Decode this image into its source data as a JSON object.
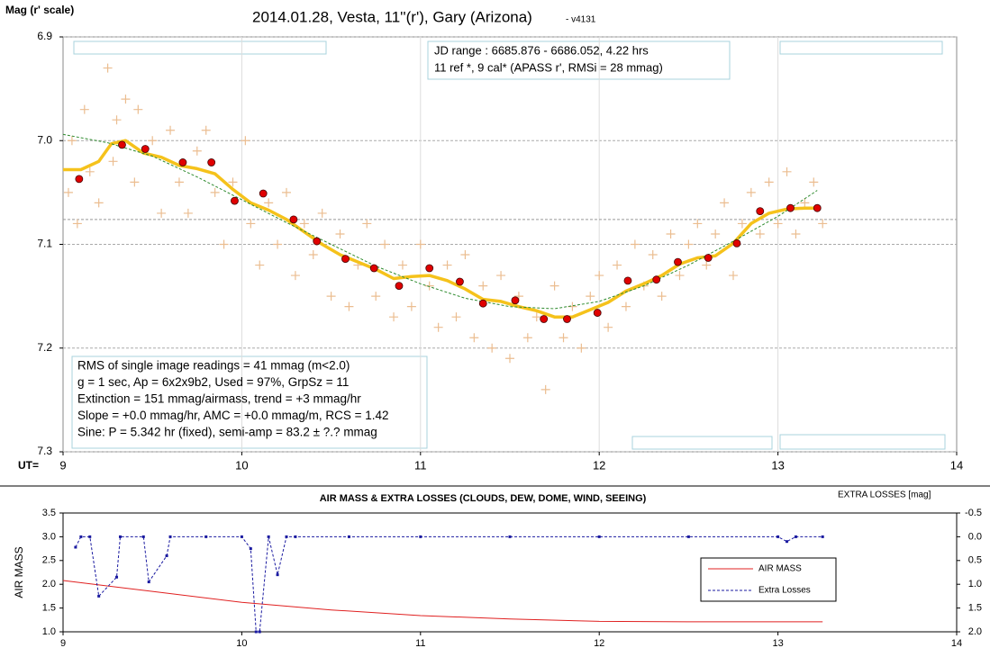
{
  "chart_data": [
    {
      "type": "scatter",
      "title": "2014.01.28, Vesta, 11''(r'), Gary (Arizona)",
      "subtitle": "- v4131",
      "ylabel": "Mag (r' scale)",
      "xlabel": "UT=",
      "xlim": [
        9,
        14
      ],
      "xticks": [
        9,
        10,
        11,
        12,
        13,
        14
      ],
      "ylim": [
        6.9,
        7.3
      ],
      "y_inverted": true,
      "yticks": [
        6.9,
        {
          "value": 7,
          "label": "7.0"
        },
        7.1,
        7.2,
        7.3
      ],
      "grid": true,
      "ref_line": 7.076,
      "annotations": {
        "info_top": [
          "JD range : 6685.876 - 6686.052, 4.22 hrs",
          "11  ref *, 9 cal* (APASS r', RMSi = 28 mmag)"
        ],
        "info_bottom": [
          "RMS of single image readings = 41 mmag (m<2.0)",
          "g = 1 sec, Ap = 6x2x9b2, Used = 97%, GrpSz = 11",
          "Extinction = 151 mmag/airmass, trend = +3 mmag/hr",
          "Slope = +0.0 mmag/hr, AMC = +0.0 mmag/m, RCS = 1.42",
          "Sine: P = 5.342 hr (fixed), semi-amp = 83.2 ± ?.? mmag"
        ]
      },
      "series": [
        {
          "type": "scatter",
          "marker": "plus",
          "color": "#ebbd90",
          "x": [
            9.03,
            9.05,
            9.08,
            9.12,
            9.15,
            9.2,
            9.25,
            9.28,
            9.3,
            9.35,
            9.4,
            9.42,
            9.5,
            9.55,
            9.6,
            9.65,
            9.7,
            9.75,
            9.8,
            9.85,
            9.9,
            9.95,
            10.02,
            10.05,
            10.1,
            10.15,
            10.2,
            10.25,
            10.3,
            10.35,
            10.4,
            10.45,
            10.5,
            10.55,
            10.6,
            10.65,
            10.7,
            10.75,
            10.8,
            10.85,
            10.9,
            10.95,
            11.0,
            11.05,
            11.1,
            11.15,
            11.2,
            11.25,
            11.3,
            11.35,
            11.4,
            11.45,
            11.5,
            11.55,
            11.6,
            11.65,
            11.7,
            11.75,
            11.8,
            11.85,
            11.9,
            11.95,
            12.0,
            12.05,
            12.1,
            12.15,
            12.2,
            12.25,
            12.3,
            12.35,
            12.4,
            12.45,
            12.5,
            12.55,
            12.6,
            12.65,
            12.7,
            12.75,
            12.8,
            12.85,
            12.9,
            12.95,
            13.0,
            13.05,
            13.1,
            13.15,
            13.2,
            13.25
          ],
          "values": [
            7.05,
            7.0,
            7.08,
            6.97,
            7.03,
            7.06,
            6.93,
            7.02,
            6.98,
            6.96,
            7.04,
            6.97,
            7.0,
            7.07,
            6.99,
            7.04,
            7.07,
            7.01,
            6.99,
            7.05,
            7.1,
            7.04,
            7.0,
            7.08,
            7.12,
            7.06,
            7.1,
            7.05,
            7.13,
            7.08,
            7.11,
            7.07,
            7.15,
            7.09,
            7.16,
            7.12,
            7.08,
            7.15,
            7.1,
            7.17,
            7.12,
            7.16,
            7.1,
            7.14,
            7.18,
            7.12,
            7.17,
            7.11,
            7.19,
            7.14,
            7.2,
            7.13,
            7.21,
            7.15,
            7.19,
            7.17,
            7.24,
            7.14,
            7.19,
            7.16,
            7.2,
            7.15,
            7.13,
            7.18,
            7.12,
            7.16,
            7.1,
            7.14,
            7.11,
            7.15,
            7.09,
            7.13,
            7.1,
            7.08,
            7.12,
            7.09,
            7.06,
            7.13,
            7.08,
            7.05,
            7.09,
            7.04,
            7.08,
            7.03,
            7.09,
            7.06,
            7.04,
            7.08
          ]
        },
        {
          "type": "line",
          "color": "#f5c21b",
          "width": 3.5,
          "x": [
            9.0,
            9.1,
            9.2,
            9.27,
            9.35,
            9.45,
            9.55,
            9.65,
            9.75,
            9.85,
            9.95,
            10.05,
            10.15,
            10.25,
            10.35,
            10.45,
            10.55,
            10.65,
            10.75,
            10.85,
            10.95,
            11.05,
            11.15,
            11.25,
            11.35,
            11.45,
            11.55,
            11.65,
            11.75,
            11.85,
            11.95,
            12.05,
            12.15,
            12.25,
            12.35,
            12.45,
            12.55,
            12.65,
            12.75,
            12.85,
            12.95,
            13.05,
            13.15,
            13.22
          ],
          "values": [
            7.028,
            7.028,
            7.02,
            7.003,
            7.0,
            7.012,
            7.016,
            7.024,
            7.027,
            7.032,
            7.047,
            7.06,
            7.067,
            7.076,
            7.088,
            7.1,
            7.11,
            7.117,
            7.124,
            7.133,
            7.131,
            7.13,
            7.135,
            7.143,
            7.153,
            7.155,
            7.16,
            7.164,
            7.17,
            7.17,
            7.163,
            7.156,
            7.145,
            7.138,
            7.13,
            7.119,
            7.113,
            7.111,
            7.099,
            7.08,
            7.07,
            7.066,
            7.065,
            7.065
          ]
        },
        {
          "type": "line",
          "color": "#2e8b2e",
          "dashed": true,
          "width": 1,
          "x": [
            9.0,
            9.25,
            9.5,
            9.75,
            10.0,
            10.25,
            10.5,
            10.75,
            11.0,
            11.25,
            11.5,
            11.75,
            12.0,
            12.25,
            12.5,
            12.75,
            13.0,
            13.22
          ],
          "values": [
            6.994,
            7.002,
            7.015,
            7.035,
            7.057,
            7.079,
            7.1,
            7.121,
            7.138,
            7.152,
            7.16,
            7.162,
            7.155,
            7.14,
            7.12,
            7.097,
            7.073,
            7.048
          ]
        },
        {
          "type": "scatter",
          "marker": "circle",
          "color": "#e00000",
          "x": [
            9.09,
            9.33,
            9.46,
            9.67,
            9.83,
            9.96,
            10.12,
            10.29,
            10.42,
            10.58,
            10.74,
            10.88,
            11.05,
            11.22,
            11.35,
            11.53,
            11.69,
            11.82,
            11.99,
            12.16,
            12.32,
            12.44,
            12.61,
            12.77,
            12.9,
            13.07,
            13.22
          ],
          "values": [
            7.037,
            7.004,
            7.008,
            7.021,
            7.021,
            7.058,
            7.051,
            7.076,
            7.097,
            7.114,
            7.123,
            7.14,
            7.123,
            7.136,
            7.157,
            7.154,
            7.172,
            7.172,
            7.166,
            7.135,
            7.134,
            7.117,
            7.113,
            7.099,
            7.068,
            7.065,
            7.065
          ]
        }
      ]
    },
    {
      "type": "line",
      "title": "AIR MASS & EXTRA LOSSES (CLOUDS, DEW, DOME, WIND, SEEING)",
      "ylabel": "AIR MASS",
      "y2label": "EXTRA LOSSES [mag]",
      "xlim": [
        9,
        14
      ],
      "xticks": [
        9,
        10,
        11,
        12,
        13,
        14
      ],
      "ylim": [
        1,
        3.5
      ],
      "yticks": [
        {
          "value": 1,
          "label": "1.0"
        },
        1.5,
        {
          "value": 2,
          "label": "2.0"
        },
        2.5,
        {
          "value": 3,
          "label": "3.0"
        },
        3.5
      ],
      "y2lim": [
        -0.5,
        2
      ],
      "y2_inverted": true,
      "y2ticks": [
        -0.5,
        {
          "value": 0,
          "label": "0.0"
        },
        0.5,
        {
          "value": 1,
          "label": "1.0"
        },
        1.5,
        {
          "value": 2,
          "label": "2.0"
        }
      ],
      "grid": false,
      "legend": "right",
      "series": [
        {
          "name": "AIR MASS",
          "type": "line",
          "color": "#e02020",
          "width": 1,
          "x": [
            9.0,
            9.5,
            10.0,
            10.5,
            11.0,
            11.5,
            12.0,
            12.5,
            13.0,
            13.25
          ],
          "values": [
            2.08,
            1.85,
            1.62,
            1.46,
            1.34,
            1.27,
            1.22,
            1.21,
            1.21,
            1.21
          ]
        },
        {
          "name": "Extra Losses",
          "type": "line",
          "axis": "y2",
          "color": "#1a1aa0",
          "dashed": true,
          "marker": "square",
          "width": 1,
          "x": [
            9.07,
            9.1,
            9.15,
            9.2,
            9.3,
            9.32,
            9.45,
            9.48,
            9.58,
            9.6,
            9.8,
            10.0,
            10.05,
            10.08,
            10.1,
            10.15,
            10.2,
            10.25,
            10.3,
            10.6,
            11.0,
            11.5,
            12.0,
            12.5,
            13.0,
            13.05,
            13.1,
            13.25
          ],
          "values": [
            0.22,
            0.0,
            0.0,
            1.25,
            0.85,
            0.0,
            0.0,
            0.95,
            0.4,
            0.0,
            0.0,
            0.0,
            0.25,
            2.0,
            2.0,
            0.0,
            0.8,
            0.0,
            0.0,
            0.0,
            0.0,
            0.0,
            0.0,
            0.0,
            0.0,
            0.1,
            0.0,
            0.0
          ]
        }
      ]
    }
  ]
}
